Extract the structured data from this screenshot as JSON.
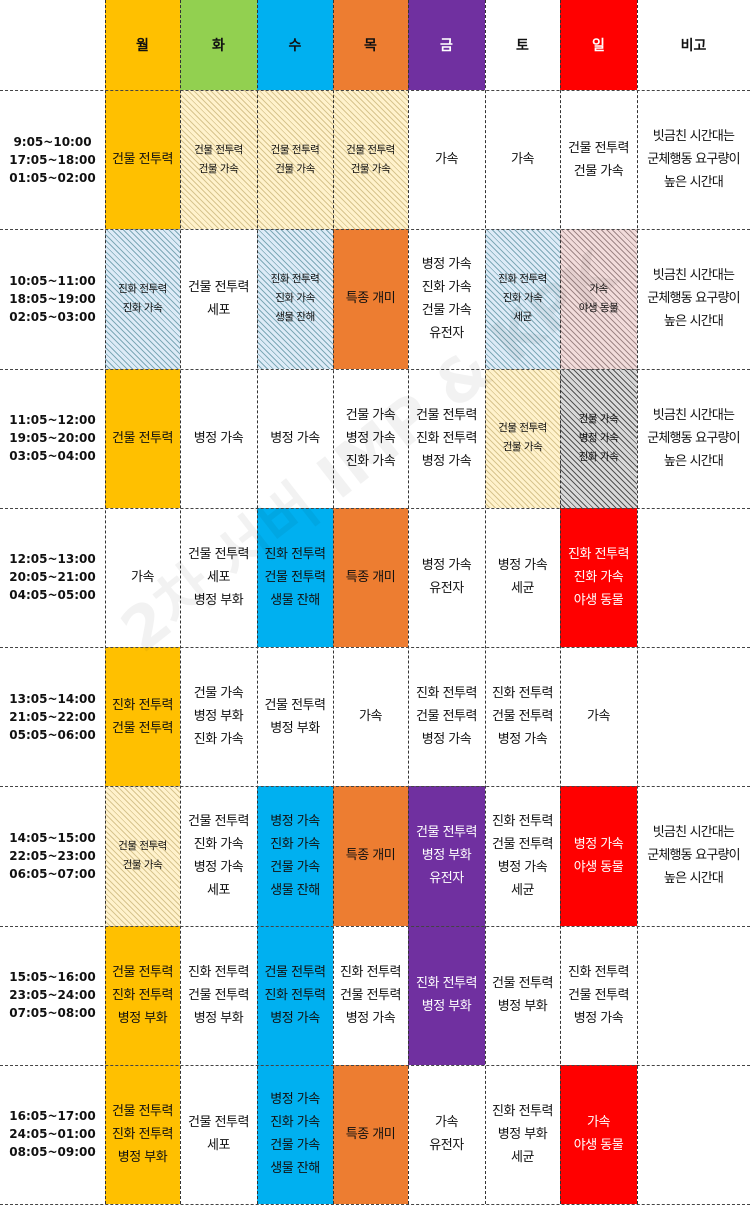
{
  "watermark": "2차 서버 IMP & KPK",
  "colors": {
    "yellow": "#FFC000",
    "green": "#92D050",
    "blue": "#00B0F0",
    "orange": "#ED7D31",
    "purple": "#7030A0",
    "red": "#FF0000",
    "white": "#FFFFFF",
    "hatch_beige": "#FFF2CC",
    "hatch_cyan": "#DDEBF7",
    "hatch_pink": "#F2DCDB",
    "hatch_gray": "#D9D9D9"
  },
  "headers": [
    {
      "label": "",
      "color": "#FFFFFF"
    },
    {
      "label": "월",
      "color": "#FFC000"
    },
    {
      "label": "화",
      "color": "#92D050"
    },
    {
      "label": "수",
      "color": "#00B0F0"
    },
    {
      "label": "목",
      "color": "#ED7D31"
    },
    {
      "label": "금",
      "color": "#7030A0"
    },
    {
      "label": "토",
      "color": "#FFFFFF"
    },
    {
      "label": "일",
      "color": "#FF0000"
    },
    {
      "label": "비고",
      "color": "#FFFFFF"
    }
  ],
  "rows": [
    {
      "time": [
        "9:05~10:00",
        "17:05~18:00",
        "01:05~02:00"
      ],
      "cells": [
        {
          "lines": [
            "건물 전투력"
          ],
          "color": "#FFC000",
          "hatch": null
        },
        {
          "lines": [
            "건물 전투력",
            "건물 가속"
          ],
          "color": "#FFF2CC",
          "hatch": "beige"
        },
        {
          "lines": [
            "건물 전투력",
            "건물 가속"
          ],
          "color": "#FFF2CC",
          "hatch": "beige"
        },
        {
          "lines": [
            "건물 전투력",
            "건물 가속"
          ],
          "color": "#FFF2CC",
          "hatch": "beige"
        },
        {
          "lines": [
            "가속"
          ],
          "color": "#FFFFFF",
          "hatch": null
        },
        {
          "lines": [
            "가속"
          ],
          "color": "#FFFFFF",
          "hatch": null
        },
        {
          "lines": [
            "건물 전투력",
            "건물 가속"
          ],
          "color": "#FFFFFF",
          "hatch": null
        }
      ],
      "note": [
        "빗금친 시간대는",
        "군체행동 요구량이",
        "높은 시간대"
      ]
    },
    {
      "time": [
        "10:05~11:00",
        "18:05~19:00",
        "02:05~03:00"
      ],
      "cells": [
        {
          "lines": [
            "진화 전투력",
            "진화 가속"
          ],
          "color": "#DDEBF7",
          "hatch": "cyan"
        },
        {
          "lines": [
            "건물 전투력",
            "세포"
          ],
          "color": "#FFFFFF",
          "hatch": null
        },
        {
          "lines": [
            "진화 전투력",
            "진화 가속",
            "생물 잔해"
          ],
          "color": "#DDEBF7",
          "hatch": "cyan"
        },
        {
          "lines": [
            "특종 개미"
          ],
          "color": "#ED7D31",
          "hatch": null
        },
        {
          "lines": [
            "병정 가속",
            "진화 가속",
            "건물 가속",
            "유전자"
          ],
          "color": "#FFFFFF",
          "hatch": null
        },
        {
          "lines": [
            "진화 전투력",
            "진화 가속",
            "세균"
          ],
          "color": "#DDEBF7",
          "hatch": "cyan"
        },
        {
          "lines": [
            "가속",
            "야생 동물"
          ],
          "color": "#F2DCDB",
          "hatch": "pink"
        }
      ],
      "note": [
        "빗금친 시간대는",
        "군체행동 요구량이",
        "높은 시간대"
      ]
    },
    {
      "time": [
        "11:05~12:00",
        "19:05~20:00",
        "03:05~04:00"
      ],
      "cells": [
        {
          "lines": [
            "건물 전투력"
          ],
          "color": "#FFC000",
          "hatch": null
        },
        {
          "lines": [
            "병정 가속"
          ],
          "color": "#FFFFFF",
          "hatch": null
        },
        {
          "lines": [
            "병정 가속"
          ],
          "color": "#FFFFFF",
          "hatch": null
        },
        {
          "lines": [
            "건물 가속",
            "병정 가속",
            "진화 가속"
          ],
          "color": "#FFFFFF",
          "hatch": null
        },
        {
          "lines": [
            "건물 전투력",
            "진화 전투력",
            "병정 가속"
          ],
          "color": "#FFFFFF",
          "hatch": null
        },
        {
          "lines": [
            "건물 전투력",
            "건물 가속"
          ],
          "color": "#FFF2CC",
          "hatch": "beige"
        },
        {
          "lines": [
            "건물 가속",
            "병정 가속",
            "진화 가속"
          ],
          "color": "#D9D9D9",
          "hatch": "gray"
        }
      ],
      "note": [
        "빗금친 시간대는",
        "군체행동 요구량이",
        "높은 시간대"
      ]
    },
    {
      "time": [
        "12:05~13:00",
        "20:05~21:00",
        "04:05~05:00"
      ],
      "cells": [
        {
          "lines": [
            "가속"
          ],
          "color": "#FFFFFF",
          "hatch": null
        },
        {
          "lines": [
            "건물 전투력",
            "세포",
            "병정 부화"
          ],
          "color": "#FFFFFF",
          "hatch": null
        },
        {
          "lines": [
            "진화 전투력",
            "건물 전투력",
            "생물 잔해"
          ],
          "color": "#00B0F0",
          "hatch": null
        },
        {
          "lines": [
            "특종 개미"
          ],
          "color": "#ED7D31",
          "hatch": null
        },
        {
          "lines": [
            "병정 가속",
            "유전자"
          ],
          "color": "#FFFFFF",
          "hatch": null
        },
        {
          "lines": [
            "병정 가속",
            "세균"
          ],
          "color": "#FFFFFF",
          "hatch": null
        },
        {
          "lines": [
            "진화 전투력",
            "진화 가속",
            "야생 동물"
          ],
          "color": "#FF0000",
          "hatch": null
        }
      ],
      "note": []
    },
    {
      "time": [
        "13:05~14:00",
        "21:05~22:00",
        "05:05~06:00"
      ],
      "cells": [
        {
          "lines": [
            "진화 전투력",
            "건물 전투력"
          ],
          "color": "#FFC000",
          "hatch": null
        },
        {
          "lines": [
            "건물 가속",
            "병정 부화",
            "진화 가속"
          ],
          "color": "#FFFFFF",
          "hatch": null
        },
        {
          "lines": [
            "건물 전투력",
            "병정 부화"
          ],
          "color": "#FFFFFF",
          "hatch": null
        },
        {
          "lines": [
            "가속"
          ],
          "color": "#FFFFFF",
          "hatch": null
        },
        {
          "lines": [
            "진화 전투력",
            "건물 전투력",
            "병정 가속"
          ],
          "color": "#FFFFFF",
          "hatch": null
        },
        {
          "lines": [
            "진화 전투력",
            "건물 전투력",
            "병정 가속"
          ],
          "color": "#FFFFFF",
          "hatch": null
        },
        {
          "lines": [
            "가속"
          ],
          "color": "#FFFFFF",
          "hatch": null
        }
      ],
      "note": []
    },
    {
      "time": [
        "14:05~15:00",
        "22:05~23:00",
        "06:05~07:00"
      ],
      "cells": [
        {
          "lines": [
            "건물 전투력",
            "건물 가속"
          ],
          "color": "#FFF2CC",
          "hatch": "beige"
        },
        {
          "lines": [
            "건물 전투력",
            "진화 가속",
            "병정 가속",
            "세포"
          ],
          "color": "#FFFFFF",
          "hatch": null
        },
        {
          "lines": [
            "병정 가속",
            "진화 가속",
            "건물 가속",
            "생물 잔해"
          ],
          "color": "#00B0F0",
          "hatch": null
        },
        {
          "lines": [
            "특종 개미"
          ],
          "color": "#ED7D31",
          "hatch": null
        },
        {
          "lines": [
            "건물 전투력",
            "병정 부화",
            "유전자"
          ],
          "color": "#7030A0",
          "hatch": null
        },
        {
          "lines": [
            "진화 전투력",
            "건물 전투력",
            "병정 가속",
            "세균"
          ],
          "color": "#FFFFFF",
          "hatch": null
        },
        {
          "lines": [
            "병정 가속",
            "야생 동물"
          ],
          "color": "#FF0000",
          "hatch": null
        }
      ],
      "note": [
        "빗금친 시간대는",
        "군체행동 요구량이",
        "높은 시간대"
      ]
    },
    {
      "time": [
        "15:05~16:00",
        "23:05~24:00",
        "07:05~08:00"
      ],
      "cells": [
        {
          "lines": [
            "건물 전투력",
            "진화 전투력",
            "병정 부화"
          ],
          "color": "#FFC000",
          "hatch": null
        },
        {
          "lines": [
            "진화 전투력",
            "건물 전투력",
            "병정 부화"
          ],
          "color": "#FFFFFF",
          "hatch": null
        },
        {
          "lines": [
            "건물 전투력",
            "진화 전투력",
            "병정 가속"
          ],
          "color": "#00B0F0",
          "hatch": null
        },
        {
          "lines": [
            "진화 전투력",
            "건물 전투력",
            "병정 가속"
          ],
          "color": "#FFFFFF",
          "hatch": null
        },
        {
          "lines": [
            "진화 전투력",
            "병정 부화"
          ],
          "color": "#7030A0",
          "hatch": null
        },
        {
          "lines": [
            "건물 전투력",
            "병정 부화"
          ],
          "color": "#FFFFFF",
          "hatch": null
        },
        {
          "lines": [
            "진화 전투력",
            "건물 전투력",
            "병정 가속"
          ],
          "color": "#FFFFFF",
          "hatch": null
        }
      ],
      "note": []
    },
    {
      "time": [
        "16:05~17:00",
        "24:05~01:00",
        "08:05~09:00"
      ],
      "cells": [
        {
          "lines": [
            "건물 전투력",
            "진화 전투력",
            "병정 부화"
          ],
          "color": "#FFC000",
          "hatch": null
        },
        {
          "lines": [
            "건물 전투력",
            "세포"
          ],
          "color": "#FFFFFF",
          "hatch": null
        },
        {
          "lines": [
            "병정 가속",
            "진화 가속",
            "건물 가속",
            "생물 잔해"
          ],
          "color": "#00B0F0",
          "hatch": null
        },
        {
          "lines": [
            "특종 개미"
          ],
          "color": "#ED7D31",
          "hatch": null
        },
        {
          "lines": [
            "가속",
            "유전자"
          ],
          "color": "#FFFFFF",
          "hatch": null
        },
        {
          "lines": [
            "진화 전투력",
            "병정 부화",
            "세균"
          ],
          "color": "#FFFFFF",
          "hatch": null
        },
        {
          "lines": [
            "가속",
            "야생 동물"
          ],
          "color": "#FF0000",
          "hatch": null
        }
      ],
      "note": []
    }
  ]
}
